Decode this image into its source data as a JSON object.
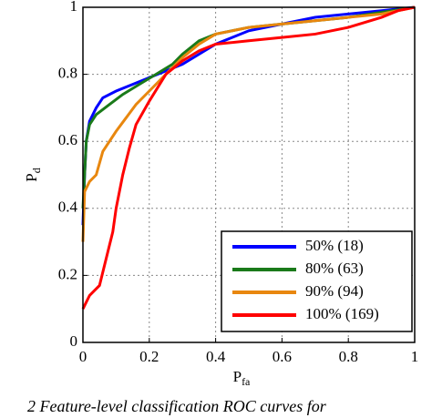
{
  "chart_data": {
    "type": "line",
    "xlabel": {
      "text": "P",
      "subscript": "fa"
    },
    "ylabel": {
      "text": "P",
      "subscript": "d"
    },
    "caption": "2    Feature-level classification ROC curves for",
    "xlim": [
      0,
      1
    ],
    "ylim": [
      0,
      1
    ],
    "xticks": [
      0,
      0.2,
      0.4,
      0.6,
      0.8,
      1
    ],
    "yticks": [
      0,
      0.2,
      0.4,
      0.6,
      0.8,
      1
    ],
    "grid": true,
    "legend": "lower right",
    "series": [
      {
        "name": "50% (18)",
        "color": "#0000ff",
        "x": [
          0,
          0.005,
          0.01,
          0.02,
          0.04,
          0.06,
          0.1,
          0.15,
          0.2,
          0.25,
          0.3,
          0.35,
          0.4,
          0.45,
          0.5,
          0.6,
          0.7,
          0.8,
          0.9,
          1
        ],
        "values": [
          0.35,
          0.5,
          0.6,
          0.66,
          0.7,
          0.73,
          0.75,
          0.77,
          0.79,
          0.81,
          0.83,
          0.86,
          0.89,
          0.91,
          0.93,
          0.95,
          0.97,
          0.98,
          0.99,
          1
        ]
      },
      {
        "name": "80% (63)",
        "color": "#1a7a1a",
        "x": [
          0,
          0.005,
          0.01,
          0.02,
          0.04,
          0.08,
          0.12,
          0.17,
          0.22,
          0.27,
          0.3,
          0.35,
          0.4,
          0.45,
          0.5,
          0.6,
          0.7,
          0.8,
          0.9,
          1
        ],
        "values": [
          0.4,
          0.5,
          0.6,
          0.65,
          0.68,
          0.71,
          0.74,
          0.77,
          0.8,
          0.83,
          0.86,
          0.9,
          0.92,
          0.93,
          0.94,
          0.95,
          0.96,
          0.97,
          0.985,
          1
        ]
      },
      {
        "name": "90% (94)",
        "color": "#e8870f",
        "x": [
          0,
          0.005,
          0.02,
          0.04,
          0.06,
          0.08,
          0.1,
          0.13,
          0.16,
          0.2,
          0.25,
          0.3,
          0.35,
          0.4,
          0.5,
          0.6,
          0.7,
          0.8,
          0.9,
          1
        ],
        "values": [
          0.3,
          0.45,
          0.48,
          0.5,
          0.57,
          0.6,
          0.63,
          0.67,
          0.71,
          0.75,
          0.8,
          0.85,
          0.89,
          0.92,
          0.94,
          0.95,
          0.96,
          0.97,
          0.98,
          1
        ]
      },
      {
        "name": "100% (169)",
        "color": "#ff0000",
        "x": [
          0,
          0.02,
          0.05,
          0.07,
          0.09,
          0.1,
          0.12,
          0.14,
          0.16,
          0.2,
          0.25,
          0.3,
          0.35,
          0.4,
          0.5,
          0.6,
          0.7,
          0.8,
          0.9,
          0.95,
          1
        ],
        "values": [
          0.1,
          0.14,
          0.17,
          0.25,
          0.33,
          0.4,
          0.5,
          0.58,
          0.65,
          0.72,
          0.8,
          0.84,
          0.87,
          0.89,
          0.9,
          0.91,
          0.92,
          0.94,
          0.97,
          0.99,
          1
        ]
      }
    ]
  }
}
